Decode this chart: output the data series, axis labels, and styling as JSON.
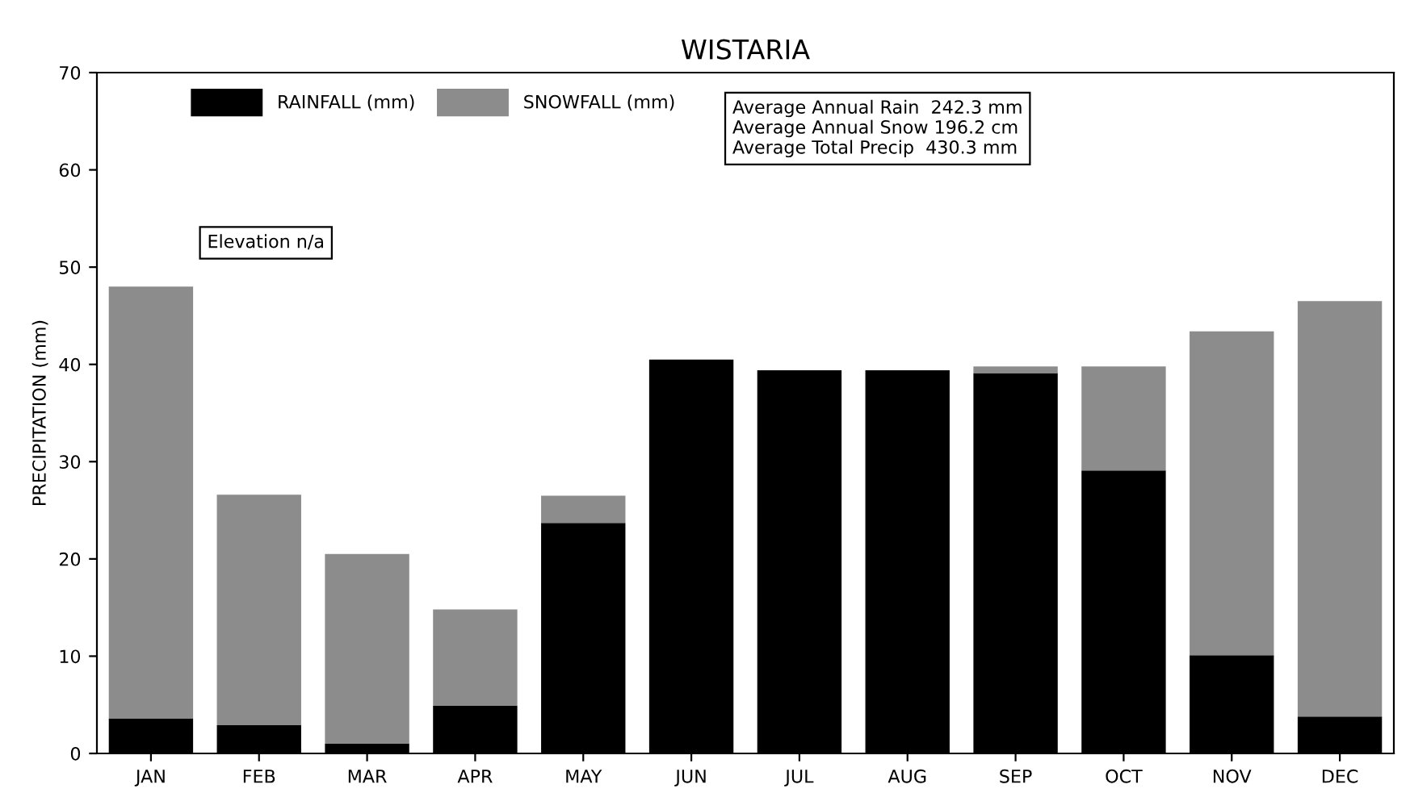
{
  "chart_data": {
    "type": "bar",
    "title": "WISTARIA",
    "ylabel": "PRECIPITATION (mm)",
    "stacked": true,
    "categories": [
      "JAN",
      "FEB",
      "MAR",
      "APR",
      "MAY",
      "JUN",
      "JUL",
      "AUG",
      "SEP",
      "OCT",
      "NOV",
      "DEC"
    ],
    "series": [
      {
        "name": "RAINFALL (mm)",
        "color": "#000000",
        "values": [
          3.6,
          2.9,
          1.0,
          4.9,
          23.7,
          40.5,
          39.4,
          39.4,
          39.1,
          29.1,
          10.1,
          3.8
        ]
      },
      {
        "name": "SNOWFALL (mm)",
        "color": "#8c8c8c",
        "values": [
          44.4,
          23.7,
          19.5,
          9.9,
          2.8,
          0,
          0,
          0,
          0.7,
          10.7,
          33.3,
          42.7
        ]
      }
    ],
    "ylim": [
      0,
      70
    ],
    "yticks": [
      0,
      10,
      20,
      30,
      40,
      50,
      60,
      70
    ],
    "grid": false,
    "legend": "top left",
    "annotations": [
      "Average Annual Rain  242.3 mm\nAverage Annual Snow 196.2 cm\nAverage Total Precip  430.3 mm",
      "Elevation n/a"
    ]
  }
}
